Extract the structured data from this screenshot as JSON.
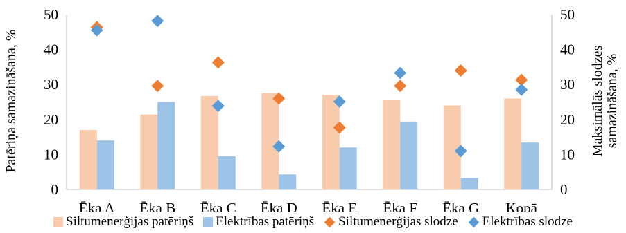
{
  "chart_data": {
    "type": "bar",
    "categories": [
      "Ēka A",
      "Ēka B",
      "Ēka C",
      "Ēka D",
      "Ēka E",
      "Ēka F",
      "Ēka G",
      "Kopā"
    ],
    "series": [
      {
        "name": "Siltumenerģijas patēriņš",
        "kind": "bar",
        "axis": "left",
        "color": "#F8CBAD",
        "values": [
          17,
          21.4,
          26.7,
          27.5,
          27,
          25.7,
          24,
          26
        ]
      },
      {
        "name": "Elektrības patēriņš",
        "kind": "bar",
        "axis": "left",
        "color": "#9DC3E6",
        "values": [
          14,
          25,
          9.5,
          4.3,
          12,
          19.4,
          3.3,
          13.4
        ]
      },
      {
        "name": "Siltumenerģijas slodze",
        "kind": "scatter",
        "axis": "right",
        "color": "#ED7D31",
        "values": [
          46.4,
          29.6,
          36.3,
          26,
          17.7,
          29.6,
          34,
          31.3
        ]
      },
      {
        "name": "Elektrības slodze",
        "kind": "scatter",
        "axis": "right",
        "color": "#5B9BD5",
        "values": [
          45.5,
          48.2,
          23.9,
          12.3,
          25.1,
          33.3,
          11,
          28.5
        ]
      }
    ],
    "ylabel": "Patēriņa samazināšana, %",
    "y2label_lines": [
      "Maksimālās slodzes",
      "samazināšana, %"
    ],
    "ylim": [
      0,
      50
    ],
    "y2lim": [
      0,
      50
    ],
    "yticks": [
      "0",
      "10",
      "20",
      "30",
      "40",
      "50"
    ],
    "grid": false,
    "legend_position": "bottom"
  }
}
